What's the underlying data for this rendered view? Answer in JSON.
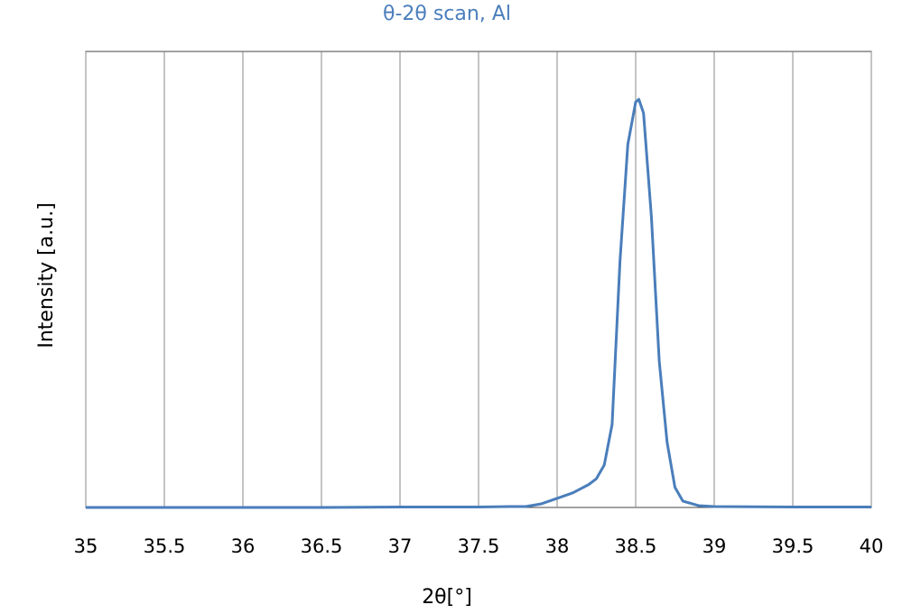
{
  "chart_data": {
    "type": "line",
    "title": "θ-2θ scan, Al",
    "x_label": "2θ[°]",
    "y_label": "Intensity [a.u.]",
    "x": [
      35,
      35.5,
      36,
      36.5,
      37,
      37.5,
      37.7,
      37.8,
      37.9,
      38.0,
      38.1,
      38.2,
      38.25,
      38.3,
      38.35,
      38.4,
      38.45,
      38.5,
      38.52,
      38.55,
      38.6,
      38.65,
      38.7,
      38.75,
      38.8,
      38.9,
      39,
      39.5,
      40
    ],
    "values": [
      0,
      0,
      0,
      0,
      0.1,
      0.1,
      0.2,
      0.2,
      0.8,
      2.0,
      3.2,
      5.0,
      6.3,
      9.3,
      18.2,
      53.9,
      79.6,
      88.9,
      89.5,
      86.5,
      63.8,
      32.1,
      14.3,
      4.4,
      1.4,
      0.4,
      0.2,
      0.1,
      0.1
    ],
    "color": "#4a7ebb",
    "xlim": [
      35,
      40
    ],
    "xticks": [
      35,
      35.5,
      36,
      36.5,
      37,
      37.5,
      38,
      38.5,
      39,
      39.5,
      40
    ],
    "ylim": [
      0,
      100
    ],
    "grid": true
  }
}
